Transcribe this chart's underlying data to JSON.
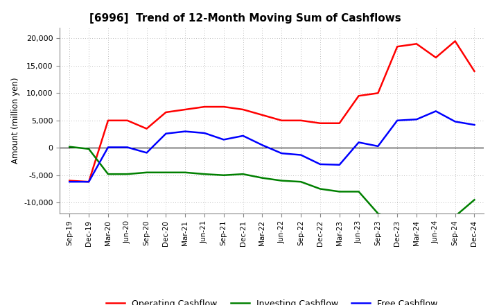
{
  "title": "[6996]  Trend of 12-Month Moving Sum of Cashflows",
  "ylabel": "Amount (million yen)",
  "background_color": "#ffffff",
  "plot_bg_color": "#ffffff",
  "grid_color": "#aaaaaa",
  "x_labels": [
    "Sep-19",
    "Dec-19",
    "Mar-20",
    "Jun-20",
    "Sep-20",
    "Dec-20",
    "Mar-21",
    "Jun-21",
    "Sep-21",
    "Dec-21",
    "Mar-22",
    "Jun-22",
    "Sep-22",
    "Dec-22",
    "Mar-23",
    "Jun-23",
    "Sep-23",
    "Dec-23",
    "Mar-24",
    "Jun-24",
    "Sep-24",
    "Dec-24"
  ],
  "operating": [
    -6000,
    -6200,
    5000,
    5000,
    3500,
    6500,
    7000,
    7500,
    7500,
    7000,
    6000,
    5000,
    5000,
    4500,
    4500,
    9500,
    10000,
    18500,
    19000,
    16500,
    19500,
    14000
  ],
  "investing": [
    200,
    -200,
    -4800,
    -4800,
    -4500,
    -4500,
    -4500,
    -4800,
    -5000,
    -4800,
    -5500,
    -6000,
    -6200,
    -7500,
    -8000,
    -8000,
    -12000,
    -13000,
    -12500,
    -12500,
    -12500,
    -9500
  ],
  "free": [
    -6200,
    -6200,
    100,
    100,
    -900,
    2600,
    3000,
    2700,
    1500,
    2200,
    500,
    -1000,
    -1300,
    -3000,
    -3100,
    1000,
    300,
    5000,
    5200,
    6700,
    4800,
    4200
  ],
  "operating_color": "#ff0000",
  "investing_color": "#008000",
  "free_color": "#0000ff",
  "ylim": [
    -12000,
    22000
  ],
  "yticks": [
    -10000,
    -5000,
    0,
    5000,
    10000,
    15000,
    20000
  ],
  "line_width": 1.8
}
